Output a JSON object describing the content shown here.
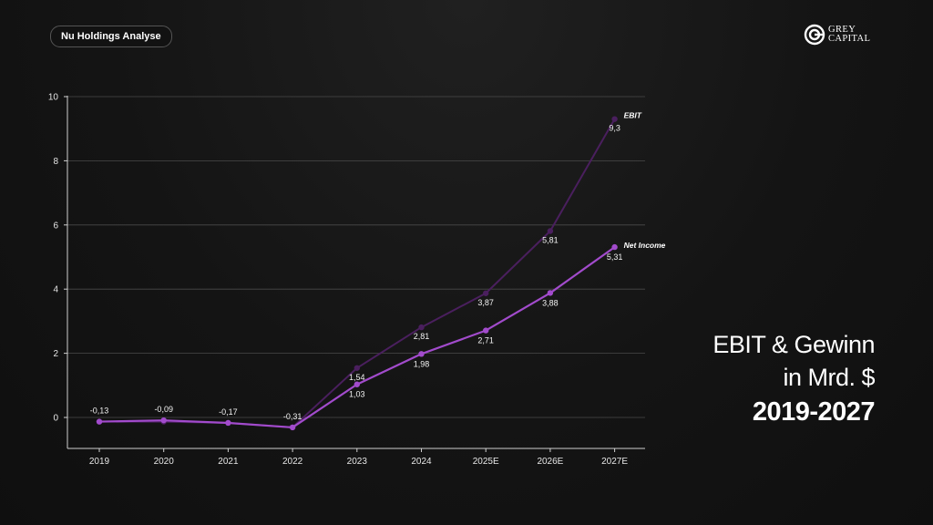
{
  "header": {
    "badge_label": "Nu Holdings Analyse",
    "logo_line1": "GREY",
    "logo_line2": "CAPITAL"
  },
  "title": {
    "line1": "EBIT & Gewinn",
    "line2": "in Mrd. $",
    "line3": "2019-2027"
  },
  "colors": {
    "ebit": "#4a1f5e",
    "net_income": "#a24bcc",
    "grid": "#4a4a4a",
    "axis": "#cfcfcf"
  },
  "chart_data": {
    "type": "line",
    "categories": [
      "2019",
      "2020",
      "2021",
      "2022",
      "2023",
      "2024",
      "2025E",
      "2026E",
      "2027E"
    ],
    "ylim": [
      -1,
      10
    ],
    "yticks": [
      0,
      2,
      4,
      6,
      8,
      10
    ],
    "grid": "horizontal",
    "series": [
      {
        "name": "EBIT",
        "values": [
          -0.13,
          -0.13,
          -0.17,
          -0.31,
          1.54,
          2.81,
          3.87,
          5.81,
          9.3
        ],
        "labels": [
          "",
          "",
          "",
          "",
          "1,54",
          "2,81",
          "3,87",
          "5,81",
          "9,3"
        ]
      },
      {
        "name": "Net Income",
        "values": [
          -0.13,
          -0.09,
          -0.17,
          -0.31,
          1.03,
          1.98,
          2.71,
          3.88,
          5.31
        ],
        "labels": [
          "-0,13",
          "-0,09",
          "-0,17",
          "-0,31",
          "1,03",
          "1,98",
          "2,71",
          "3,88",
          "5,31"
        ]
      }
    ]
  }
}
